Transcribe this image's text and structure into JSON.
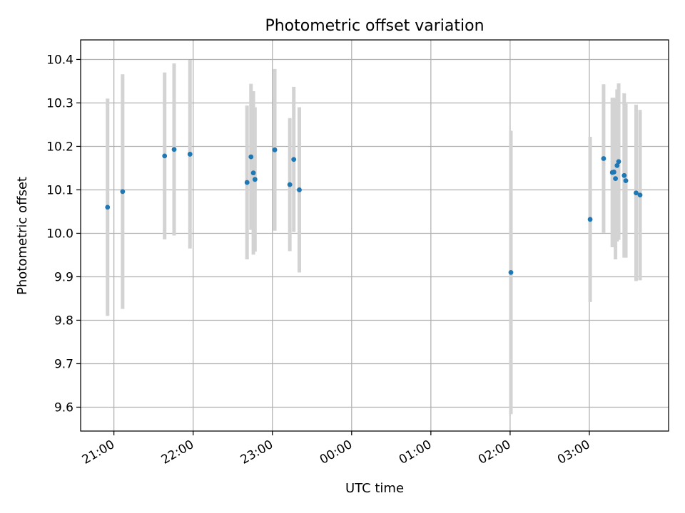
{
  "chart_data": {
    "type": "scatter",
    "title": "Photometric offset variation",
    "xlabel": "UTC time",
    "ylabel": "Photometric offset",
    "x_unit": "UTC time (hours, 21.0 = 21:00, 27.0 = 03:00 next day)",
    "xlim": [
      20.58,
      28.0
    ],
    "ylim": [
      9.545,
      10.445
    ],
    "grid": true,
    "x_ticks": [
      {
        "value": 21.0,
        "label": "21:00"
      },
      {
        "value": 22.0,
        "label": "22:00"
      },
      {
        "value": 23.0,
        "label": "23:00"
      },
      {
        "value": 24.0,
        "label": "00:00"
      },
      {
        "value": 25.0,
        "label": "01:00"
      },
      {
        "value": 26.0,
        "label": "02:00"
      },
      {
        "value": 27.0,
        "label": "03:00"
      }
    ],
    "y_ticks": [
      {
        "value": 9.6,
        "label": "9.6"
      },
      {
        "value": 9.7,
        "label": "9.7"
      },
      {
        "value": 9.8,
        "label": "9.8"
      },
      {
        "value": 9.9,
        "label": "9.9"
      },
      {
        "value": 10.0,
        "label": "10.0"
      },
      {
        "value": 10.1,
        "label": "10.1"
      },
      {
        "value": 10.2,
        "label": "10.2"
      },
      {
        "value": 10.3,
        "label": "10.3"
      },
      {
        "value": 10.4,
        "label": "10.4"
      }
    ],
    "colors": {
      "point": "#1f77b4",
      "errorbar": "#d3d3d3",
      "grid": "#b0b0b0",
      "axis": "#000000"
    },
    "series": [
      {
        "points": [
          {
            "t": 20.92,
            "y": 10.06,
            "err": 0.25
          },
          {
            "t": 21.11,
            "y": 10.096,
            "err": 0.27
          },
          {
            "t": 21.64,
            "y": 10.178,
            "err": 0.192
          },
          {
            "t": 21.76,
            "y": 10.193,
            "err": 0.198
          },
          {
            "t": 21.96,
            "y": 10.182,
            "err": 0.217
          },
          {
            "t": 22.68,
            "y": 10.117,
            "err": 0.177
          },
          {
            "t": 22.73,
            "y": 10.176,
            "err": 0.168
          },
          {
            "t": 22.76,
            "y": 10.139,
            "err": 0.188
          },
          {
            "t": 22.78,
            "y": 10.124,
            "err": 0.166
          },
          {
            "t": 23.03,
            "y": 10.192,
            "err": 0.186
          },
          {
            "t": 23.22,
            "y": 10.112,
            "err": 0.153
          },
          {
            "t": 23.27,
            "y": 10.17,
            "err": 0.167
          },
          {
            "t": 23.34,
            "y": 10.1,
            "err": 0.19
          },
          {
            "t": 26.01,
            "y": 9.91,
            "err": 0.326
          },
          {
            "t": 27.01,
            "y": 10.032,
            "err": 0.19
          },
          {
            "t": 27.18,
            "y": 10.172,
            "err": 0.171
          },
          {
            "t": 27.29,
            "y": 10.14,
            "err": 0.172
          },
          {
            "t": 27.31,
            "y": 10.141,
            "err": 0.17
          },
          {
            "t": 27.33,
            "y": 10.126,
            "err": 0.186
          },
          {
            "t": 27.35,
            "y": 10.156,
            "err": 0.175
          },
          {
            "t": 27.37,
            "y": 10.165,
            "err": 0.18
          },
          {
            "t": 27.44,
            "y": 10.133,
            "err": 0.189
          },
          {
            "t": 27.46,
            "y": 10.121,
            "err": 0.177
          },
          {
            "t": 27.59,
            "y": 10.093,
            "err": 0.203
          },
          {
            "t": 27.64,
            "y": 10.088,
            "err": 0.196
          }
        ]
      }
    ]
  }
}
